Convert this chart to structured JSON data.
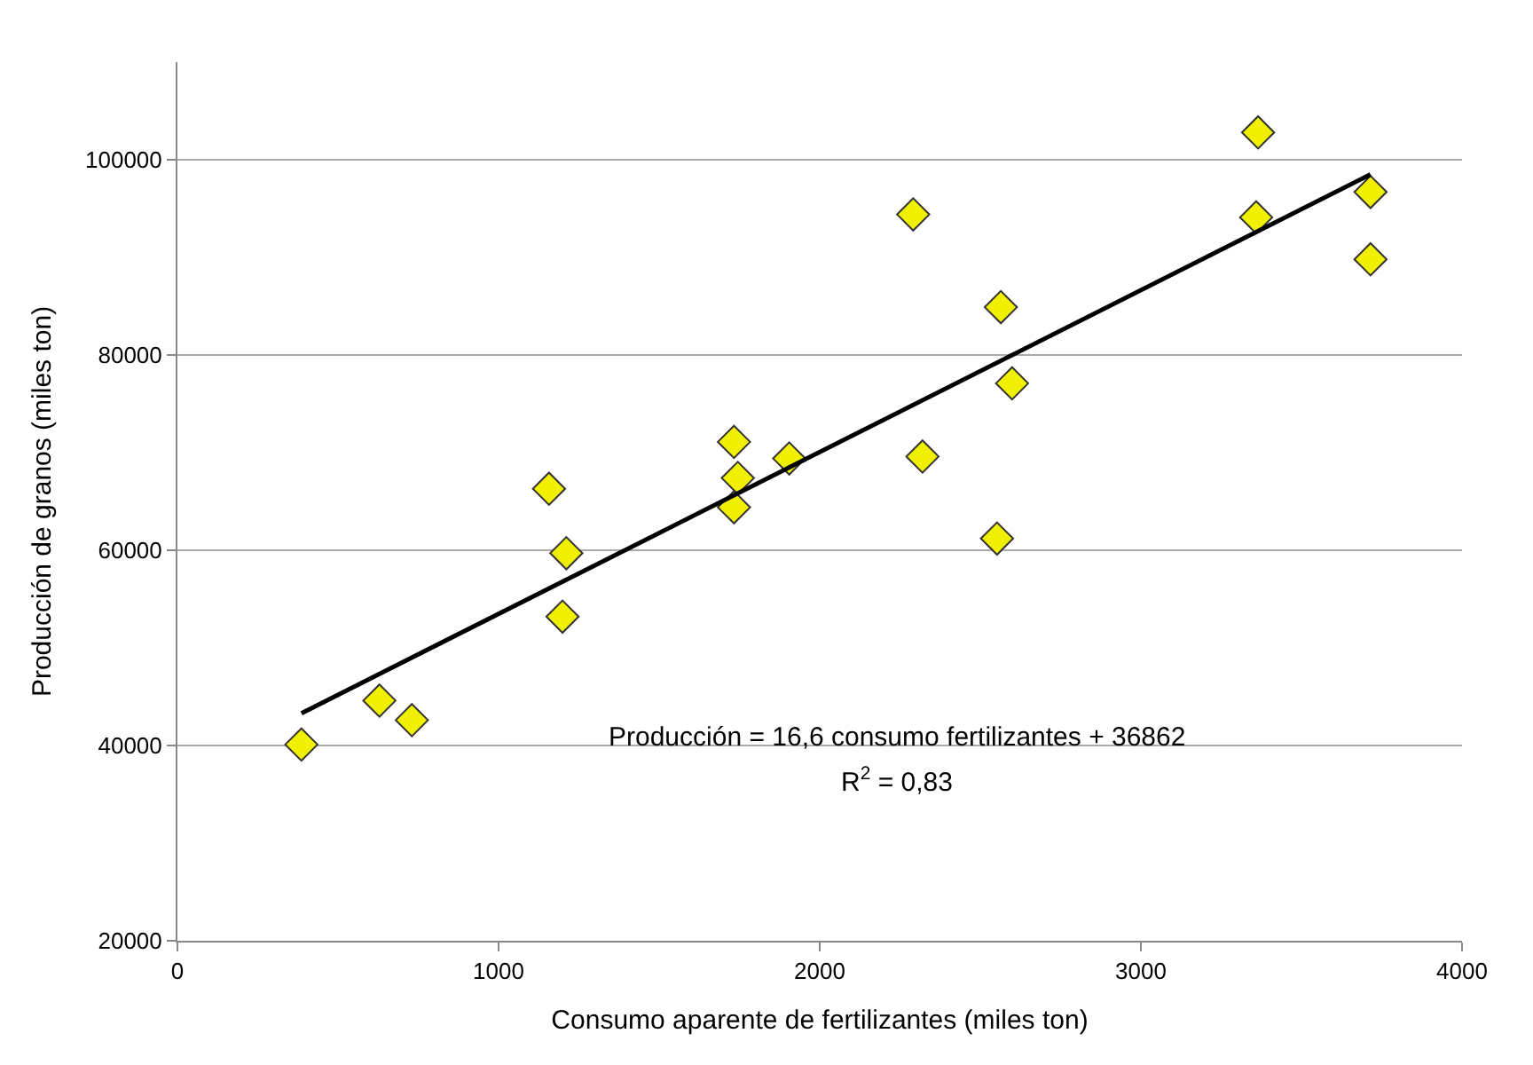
{
  "chart_data": {
    "type": "scatter",
    "xlabel": "Consumo aparente de fertilizantes (miles ton)",
    "ylabel": "Producción de granos (miles ton)",
    "xlim": [
      0,
      4000
    ],
    "xticks": [
      0,
      1000,
      2000,
      3000,
      4000
    ],
    "ylim": [
      20000,
      110000
    ],
    "yticks": [
      20000,
      40000,
      60000,
      80000,
      100000
    ],
    "grid": "y",
    "legend": false,
    "marker": "diamond",
    "series": [
      {
        "color": "#f0f000",
        "x": [
          386,
          629,
          730,
          1157,
          1211,
          1199,
          1733,
          1745,
          1733,
          1905,
          2320,
          2291,
          2564,
          2552,
          2599,
          3365,
          3359,
          3715,
          3715
        ],
        "values": [
          40100,
          44600,
          42600,
          66300,
          59700,
          53200,
          71100,
          67400,
          64400,
          69400,
          69600,
          94400,
          84900,
          61200,
          77100,
          102800,
          94100,
          96700,
          89800
        ]
      },
      {
        "type": "line",
        "marker": "none",
        "color": "#000000",
        "x": [
          386,
          3715
        ],
        "values": [
          43300,
          98500
        ]
      }
    ],
    "annotations": [
      "Producción = 16,6 consumo fertilizantes + 36862",
      "R$^{2}$ = 0,83"
    ]
  }
}
